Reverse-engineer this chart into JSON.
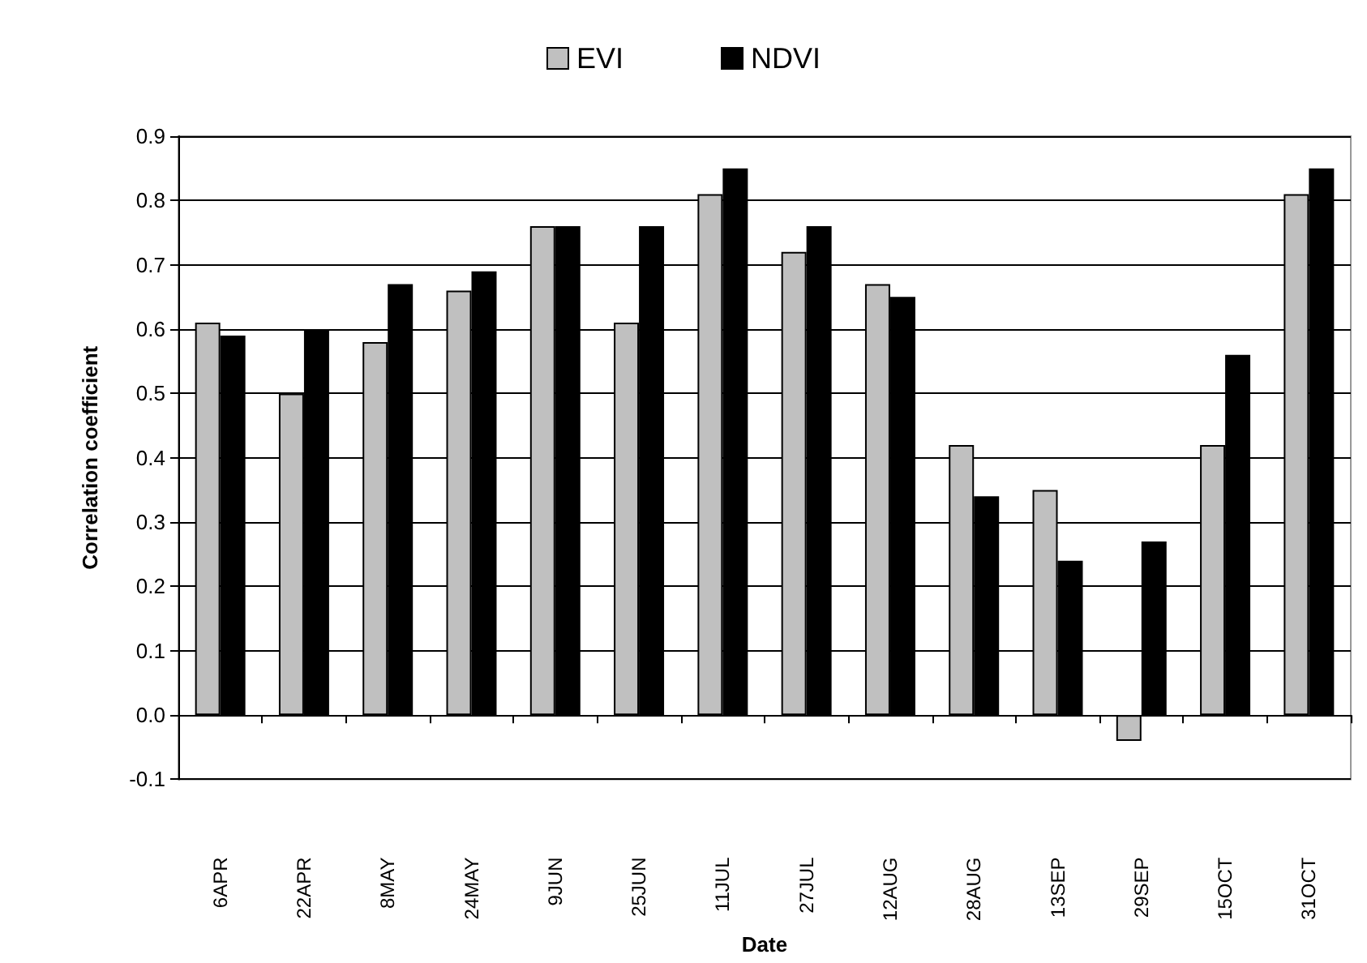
{
  "chart_data": {
    "type": "bar",
    "xlabel": "Date",
    "ylabel": "Correlation coefficient",
    "categories": [
      "6APR",
      "22APR",
      "8MAY",
      "24MAY",
      "9JUN",
      "25JUN",
      "11JUL",
      "27JUL",
      "12AUG",
      "28AUG",
      "13SEP",
      "29SEP",
      "15OCT",
      "31OCT"
    ],
    "series": [
      {
        "name": "EVI",
        "color": "#c0c0c0",
        "values": [
          0.61,
          0.5,
          0.58,
          0.66,
          0.76,
          0.61,
          0.81,
          0.72,
          0.67,
          0.42,
          0.35,
          -0.04,
          0.42,
          0.81
        ]
      },
      {
        "name": "NDVI",
        "color": "#000000",
        "values": [
          0.59,
          0.6,
          0.67,
          0.69,
          0.76,
          0.76,
          0.85,
          0.76,
          0.65,
          0.34,
          0.24,
          0.27,
          0.56,
          0.85
        ]
      }
    ],
    "ylim": [
      -0.1,
      0.9
    ],
    "yticks": [
      {
        "value": -0.1,
        "label": "-0.1"
      },
      {
        "value": 0,
        "label": "0.0"
      },
      {
        "value": 0.1,
        "label": "0.1"
      },
      {
        "value": 0.2,
        "label": "0.2"
      },
      {
        "value": 0.3,
        "label": "0.3"
      },
      {
        "value": 0.4,
        "label": "0.4"
      },
      {
        "value": 0.5,
        "label": "0.5"
      },
      {
        "value": 0.6,
        "label": "0.6"
      },
      {
        "value": 0.7,
        "label": "0.7"
      },
      {
        "value": 0.8,
        "label": "0.8"
      },
      {
        "value": 0.9,
        "label": "0.9"
      }
    ],
    "grid": "y",
    "legend": "top"
  }
}
